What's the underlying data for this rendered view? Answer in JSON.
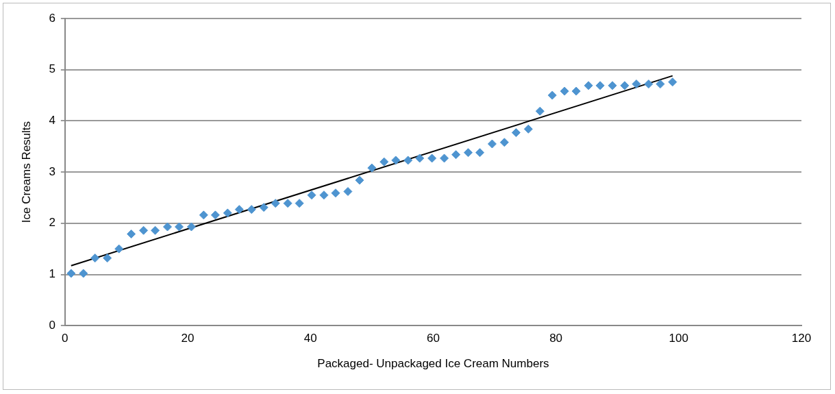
{
  "chart_data": {
    "type": "scatter",
    "xlabel": "Packaged- Unpackaged Ice Cream Numbers",
    "ylabel": "Ice Creams Results",
    "xlim": [
      0,
      120
    ],
    "xticks": [
      0,
      20,
      40,
      60,
      80,
      100,
      120
    ],
    "ylim": [
      0,
      6
    ],
    "yticks": [
      0,
      1,
      2,
      3,
      4,
      5,
      6
    ],
    "grid": "y",
    "series": [
      {
        "marker": "diamond",
        "color": "#4e94d0",
        "x": [
          1,
          3,
          4.9,
          6.9,
          8.8,
          10.8,
          12.8,
          14.7,
          16.7,
          18.6,
          20.6,
          22.6,
          24.5,
          26.5,
          28.4,
          30.4,
          32.4,
          34.3,
          36.3,
          38.2,
          40.2,
          42.2,
          44.1,
          46.1,
          48,
          50,
          52,
          53.9,
          55.9,
          57.8,
          59.8,
          61.8,
          63.7,
          65.7,
          67.6,
          69.6,
          71.6,
          73.5,
          75.5,
          77.4,
          79.4,
          81.4,
          83.3,
          85.3,
          87.2,
          89.2,
          91.2,
          93.1,
          95.1,
          97,
          99
        ],
        "values": [
          1.02,
          1.02,
          1.32,
          1.32,
          1.5,
          1.79,
          1.86,
          1.86,
          1.93,
          1.93,
          1.93,
          2.16,
          2.16,
          2.2,
          2.27,
          2.27,
          2.31,
          2.39,
          2.39,
          2.39,
          2.55,
          2.55,
          2.59,
          2.62,
          2.84,
          3.08,
          3.2,
          3.23,
          3.23,
          3.27,
          3.27,
          3.27,
          3.34,
          3.38,
          3.38,
          3.55,
          3.58,
          3.77,
          3.84,
          4.19,
          4.5,
          4.58,
          4.58,
          4.69,
          4.69,
          4.69,
          4.69,
          4.72,
          4.72,
          4.72,
          4.76
        ]
      },
      {
        "type": "line",
        "marker": "none",
        "color": "#000000",
        "x": [
          1,
          99
        ],
        "values": [
          1.17,
          4.88
        ]
      }
    ]
  }
}
